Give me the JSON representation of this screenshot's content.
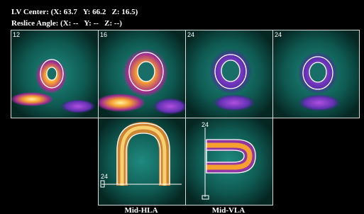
{
  "header": {
    "lv_center": "LV Center: (X: 63.7   Y: 66.2   Z: 16.5)",
    "reslice_angle": "Reslice Angle: (X: --   Y: --   Z: --)"
  },
  "short_axis_panels": [
    {
      "label": "12"
    },
    {
      "label": "16"
    },
    {
      "label": "24"
    },
    {
      "label": "24"
    }
  ],
  "long_axis_panels": [
    {
      "marker": "24",
      "caption": "Mid-HLA"
    },
    {
      "marker": "24",
      "caption": "Mid-VLA"
    }
  ]
}
